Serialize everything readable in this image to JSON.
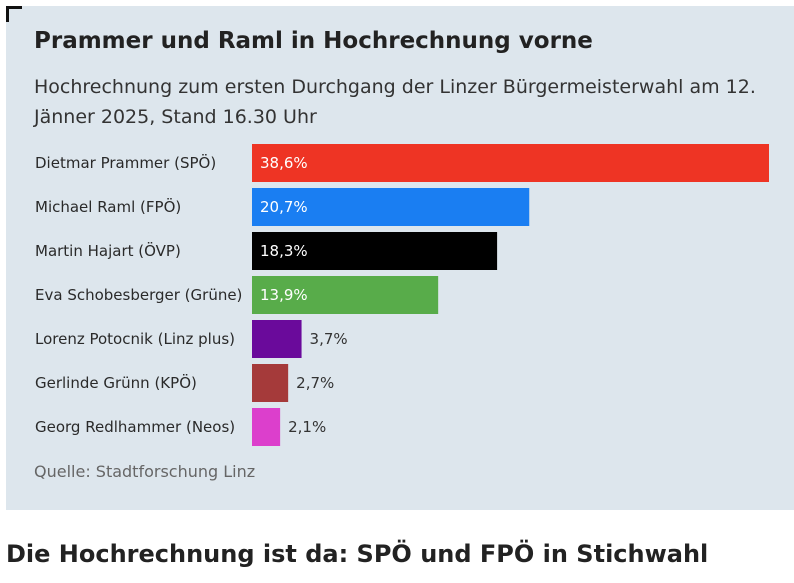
{
  "card": {
    "title": "Prammer und Raml in Hochrechnung vorne",
    "subtitle": "Hochrechnung zum ersten Durchgang der Linzer Bürgermeisterwahl am 12. Jänner 2025, Stand 16.30 Uhr",
    "source": "Quelle: Stadtforschung Linz"
  },
  "article": {
    "headline": "Die Hochrechnung ist da: SPÖ und FPÖ in Stichwahl"
  },
  "chart_data": {
    "type": "bar",
    "orientation": "horizontal",
    "title": "Prammer und Raml in Hochrechnung vorne",
    "subtitle": "Hochrechnung zum ersten Durchgang der Linzer Bürgermeisterwahl am 12. Jänner 2025, Stand 16.30 Uhr",
    "categories": [
      "Dietmar Prammer (SPÖ)",
      "Michael Raml (FPÖ)",
      "Martin Hajart (ÖVP)",
      "Eva Schobesberger (Grüne)",
      "Lorenz Potocnik (Linz plus)",
      "Gerlinde Grünn (KPÖ)",
      "Georg Redlhammer (Neos)"
    ],
    "values": [
      38.6,
      20.7,
      18.3,
      13.9,
      3.7,
      2.7,
      2.1
    ],
    "value_labels": [
      "38,6%",
      "20,7%",
      "18,3%",
      "13,9%",
      "3,7%",
      "2,7%",
      "2,1%"
    ],
    "colors": [
      "#ee3424",
      "#1a7ef2",
      "#000000",
      "#58ac4a",
      "#6a0a9b",
      "#a53a3a",
      "#dc3fcc"
    ],
    "xlim": [
      0,
      38.6
    ],
    "grid": false,
    "legend": "none"
  }
}
